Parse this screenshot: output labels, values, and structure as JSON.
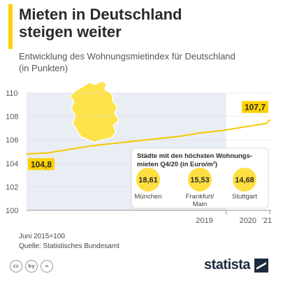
{
  "header": {
    "title_line1": "Mieten in Deutschland",
    "title_line2": "steigen weiter",
    "subtitle_line1": "Entwicklung des Wohnungsmietindex für Deutschland",
    "subtitle_line2": "(in Punkten)"
  },
  "colors": {
    "accent": "#ffd200",
    "line": "#f5c800",
    "shade": "#e9edf4",
    "circle": "#ffdf40",
    "map": "#fde24a",
    "brand": "#1c2b3f"
  },
  "chart_data": {
    "type": "line",
    "title": "Mieten in Deutschland steigen weiter",
    "subtitle": "Entwicklung des Wohnungsmietindex für Deutschland (in Punkten)",
    "xlabel": "",
    "ylabel": "",
    "ylim": [
      100,
      110
    ],
    "y_ticks": [
      "100",
      "102",
      "104",
      "106",
      "108",
      "110"
    ],
    "x_ticks": [
      "2019",
      "2020",
      "'21"
    ],
    "grid": true,
    "series": [
      {
        "values": [
          {
            "x": "2015-06",
            "y": 104.8
          },
          {
            "x": "2015-12",
            "y": 104.9
          },
          {
            "x": "2016-06",
            "y": 105.2
          },
          {
            "x": "2016-12",
            "y": 105.5
          },
          {
            "x": "2017-06",
            "y": 105.7
          },
          {
            "x": "2017-12",
            "y": 105.9
          },
          {
            "x": "2018-06",
            "y": 106.1
          },
          {
            "x": "2018-12",
            "y": 106.3
          },
          {
            "x": "2019-06",
            "y": 106.6
          },
          {
            "x": "2019-12",
            "y": 106.8
          },
          {
            "x": "2020-06",
            "y": 107.1
          },
          {
            "x": "2020-12",
            "y": 107.4
          },
          {
            "x": "2021-01",
            "y": 107.7
          }
        ]
      }
    ],
    "annotations": [
      {
        "label": "104,8",
        "point": "start"
      },
      {
        "label": "107,7",
        "point": "end"
      }
    ],
    "inset": {
      "title_line1": "Städte mit den höchsten Wohnungs-",
      "title_line2": "mieten Q4/20 (in Euro/m²)",
      "cities": [
        {
          "value": "18,61",
          "name_line1": "München",
          "name_line2": ""
        },
        {
          "value": "15,53",
          "name_line1": "Frankfurt/",
          "name_line2": "Main"
        },
        {
          "value": "14,68",
          "name_line1": "Stuttgart",
          "name_line2": ""
        }
      ]
    }
  },
  "footer": {
    "note1": "Juni 2015=100",
    "note2": "Quelle: Statistisches Bundesamt",
    "brand": "statista",
    "license_icons": [
      "cc",
      "by",
      "="
    ]
  }
}
